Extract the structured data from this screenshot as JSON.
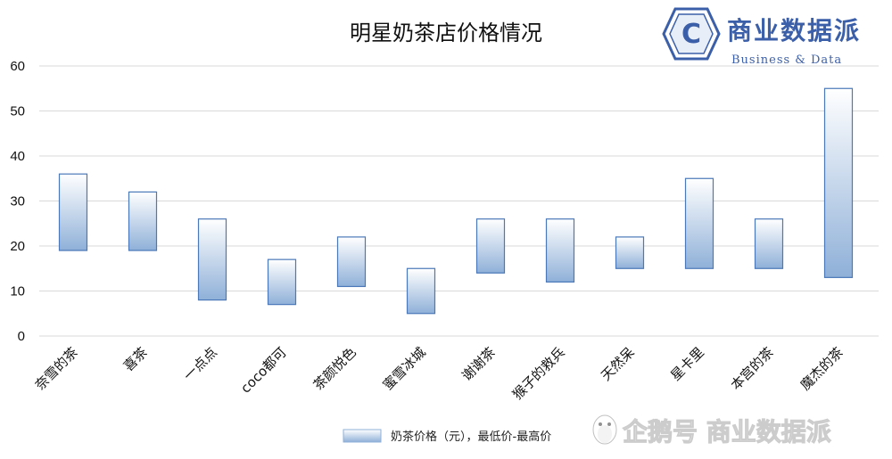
{
  "chart_data": {
    "type": "bar",
    "title": "明星奶茶店价格情况",
    "categories": [
      "奈雪的茶",
      "喜茶",
      "一点点",
      "coco都可",
      "茶颜悦色",
      "蜜雪冰城",
      "谢谢茶",
      "猴子的救兵",
      "天然呆",
      "星卡里",
      "本宫的茶",
      "魔杰的茶"
    ],
    "series": [
      {
        "name": "奶茶价格（元），最低价-最高价",
        "low": [
          19,
          19,
          8,
          7,
          11,
          5,
          14,
          12,
          15,
          15,
          15,
          13
        ],
        "high": [
          36,
          32,
          26,
          17,
          22,
          15,
          26,
          26,
          22,
          35,
          26,
          55
        ]
      }
    ],
    "yticks": [
      "0",
      "10",
      "20",
      "30",
      "40",
      "50",
      "60"
    ],
    "ylim": [
      0,
      60
    ],
    "grid": true,
    "legend_position": "bottom",
    "xlabel": "",
    "ylabel": ""
  },
  "logo": {
    "mark": "C",
    "name": "商业数据派",
    "subtitle": "Business & Data"
  },
  "watermark": {
    "icon": "penguin-icon",
    "text": "企鹅号 商业数据派"
  },
  "colors": {
    "bar_top": "#ffffff",
    "bar_bottom": "#8fb0d8",
    "bar_stroke": "#4a78b8",
    "grid": "#d9d9d9",
    "logo": "#3b5fa8"
  }
}
